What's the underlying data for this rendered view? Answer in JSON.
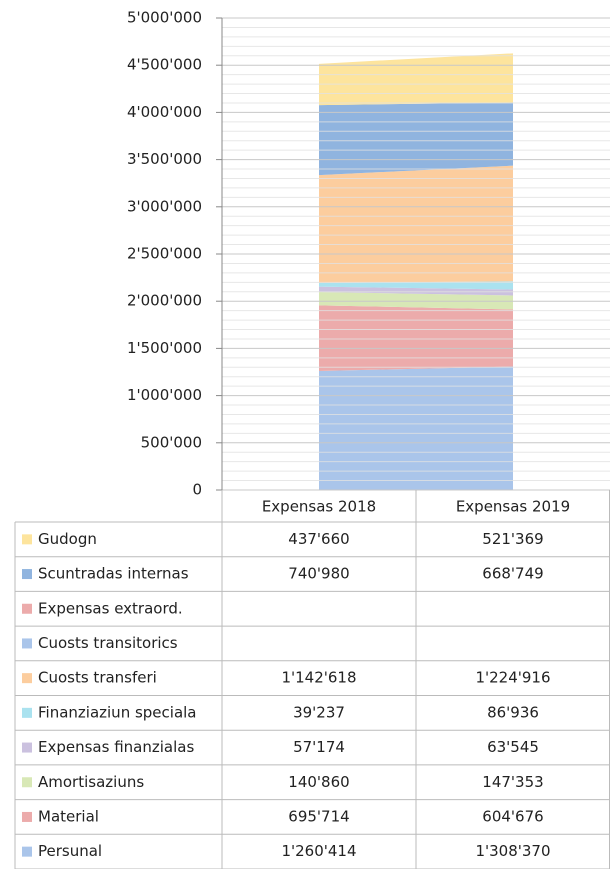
{
  "chart_data": {
    "type": "area",
    "stacked": true,
    "categories": [
      "Expensas 2018",
      "Expensas 2019"
    ],
    "ylim": [
      0,
      5000000
    ],
    "yticks": [
      0,
      {
        "value": 500000,
        "label": "500'000"
      },
      {
        "value": 1000000,
        "label": "1'000'000"
      },
      {
        "value": 1500000,
        "label": "1'500'000"
      },
      {
        "value": 2000000,
        "label": "2'000'000"
      },
      {
        "value": 2500000,
        "label": "2'500'000"
      },
      {
        "value": 3000000,
        "label": "3'000'000"
      },
      {
        "value": 3500000,
        "label": "3'500'000"
      },
      {
        "value": 4000000,
        "label": "4'000'000"
      },
      {
        "value": 4500000,
        "label": "4'500'000"
      },
      {
        "value": 5000000,
        "label": "5'000'000"
      }
    ],
    "grid": true,
    "series": [
      {
        "name": "Persunal",
        "color": "#aac5ea",
        "values": [
          1260414,
          1308370
        ],
        "value_labels": [
          "1'260'414",
          "1'308'370"
        ]
      },
      {
        "name": "Material",
        "color": "#ecabab",
        "values": [
          695714,
          604676
        ],
        "value_labels": [
          "695'714",
          "604'676"
        ]
      },
      {
        "name": "Amortisaziuns",
        "color": "#d8e8b6",
        "values": [
          140860,
          147353
        ],
        "value_labels": [
          "140'860",
          "147'353"
        ]
      },
      {
        "name": "Expensas finanzialas",
        "color": "#cbc1df",
        "values": [
          57174,
          63545
        ],
        "value_labels": [
          "57'174",
          "63'545"
        ]
      },
      {
        "name": "Finanziaziun speciala",
        "color": "#aae2ef",
        "values": [
          39237,
          86936
        ],
        "value_labels": [
          "39'237",
          "86'936"
        ]
      },
      {
        "name": "Cuosts transferi",
        "color": "#fccd9e",
        "values": [
          1142618,
          1224916
        ],
        "value_labels": [
          "1'142'618",
          "1'224'916"
        ]
      },
      {
        "name": "Cuosts transitorics",
        "color": "#aac5ea",
        "values": [
          null,
          null
        ],
        "value_labels": [
          null,
          null
        ]
      },
      {
        "name": "Expensas extraord.",
        "color": "#ecabab",
        "values": [
          null,
          null
        ],
        "value_labels": [
          null,
          null
        ]
      },
      {
        "name": "Scuntradas internas",
        "color": "#90b4df",
        "values": [
          740980,
          668749
        ],
        "value_labels": [
          "740'980",
          "668'749"
        ]
      },
      {
        "name": "Gudogn",
        "color": "#fde49d",
        "values": [
          437660,
          521369
        ],
        "value_labels": [
          "437'660",
          "521'369"
        ]
      }
    ]
  }
}
